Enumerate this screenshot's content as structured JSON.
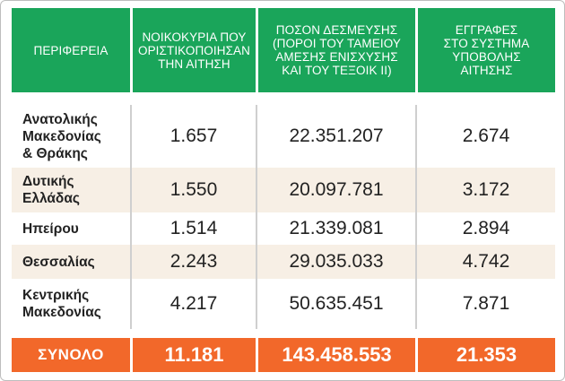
{
  "table": {
    "headers": [
      "ΠΕΡΙΦΕΡΕΙΑ",
      "ΝΟΙΚΟΚΥΡΙΑ ΠΟΥ\nΟΡΙΣΤΙΚΟΠΟΙΗΣΑΝ\nΤΗΝ ΑΙΤΗΣΗ",
      "ΠΟΣΟΝ ΔΕΣΜΕΥΣΗΣ\n(ΠΟΡΟΙ ΤΟΥ ΤΑΜΕΙΟΥ\nΑΜΕΣΗΣ ΕΝΙΣΧΥΣΗΣ\nΚΑΙ ΤΟΥ ΤΕΞΟΙΚ ΙΙ)",
      "ΕΓΓΡΑΦΕΣ\nΣΤΟ ΣΥΣΤΗΜΑ\nΥΠΟΒΟΛΗΣ\nΑΙΤΗΣΗΣ"
    ],
    "rows": [
      {
        "region": "Ανατολικής\nΜακεδονίας\n& Θράκης",
        "households": "1.657",
        "amount": "22.351.207",
        "registrations": "2.674"
      },
      {
        "region": "Δυτικής\nΕλλάδας",
        "households": "1.550",
        "amount": "20.097.781",
        "registrations": "3.172"
      },
      {
        "region": "Ηπείρου",
        "households": "1.514",
        "amount": "21.339.081",
        "registrations": "2.894"
      },
      {
        "region": "Θεσσαλίας",
        "households": "2.243",
        "amount": "29.035.033",
        "registrations": "4.742"
      },
      {
        "region": "Κεντρικής\nΜακεδονίας",
        "households": "4.217",
        "amount": "50.635.451",
        "registrations": "7.871"
      }
    ],
    "total": {
      "label": "ΣΥΝΟΛΟ",
      "households": "11.181",
      "amount": "143.458.553",
      "registrations": "21.353"
    }
  },
  "colors": {
    "header_green": "#1aa55a",
    "total_orange": "#f2682a",
    "row_shade": "#f7efe5"
  }
}
